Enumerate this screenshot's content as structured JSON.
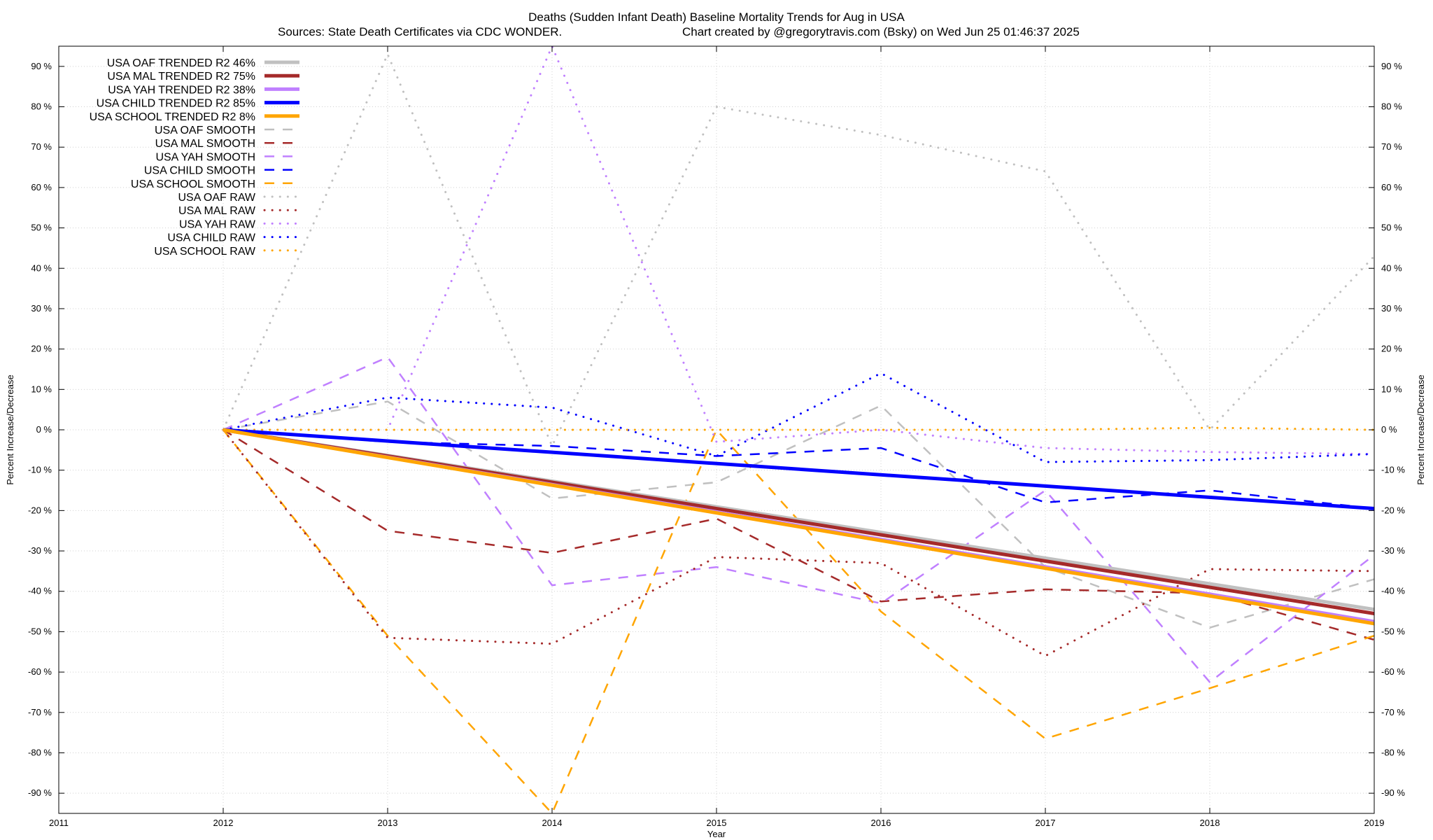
{
  "chart_data": {
    "type": "line",
    "title": "Deaths (Sudden Infant Death)  Baseline Mortality Trends for Aug in USA",
    "subtitle_left": "Sources: State Death Certificates via CDC WONDER.",
    "subtitle_right": "Chart created by @gregorytravis.com (Bsky) on Wed Jun 25 01:46:37 2025",
    "xlabel": "Year",
    "ylabel": "Percent Increase/Decrease",
    "y2label": "Percent Increase/Decrease",
    "xlim": [
      2011,
      2019
    ],
    "ylim": [
      -95,
      95
    ],
    "xticks": [
      "2011",
      "2012",
      "2013",
      "2014",
      "2015",
      "2016",
      "2017",
      "2018",
      "2019"
    ],
    "yticks": [
      "90 %",
      "80 %",
      "70 %",
      "60 %",
      "50 %",
      "40 %",
      "30 %",
      "20 %",
      "10 %",
      "0 %",
      "-10 %",
      "-20 %",
      "-30 %",
      "-40 %",
      "-50 %",
      "-60 %",
      "-70 %",
      "-80 %",
      "-90 %"
    ],
    "grid": true,
    "legend_position": "top-left",
    "series": [
      {
        "name": "USA OAF TRENDED R2  46%",
        "style": "solid",
        "color": "#c0c0c0",
        "x": [
          2012,
          2019
        ],
        "y": [
          0,
          -44.5
        ]
      },
      {
        "name": "USA MAL TRENDED R2  75%",
        "style": "solid",
        "color": "#a52a2a",
        "x": [
          2012,
          2019
        ],
        "y": [
          0,
          -45.5
        ]
      },
      {
        "name": "USA YAH TRENDED R2  38%",
        "style": "solid",
        "color": "#c080ff",
        "x": [
          2012,
          2019
        ],
        "y": [
          0,
          -47.5
        ]
      },
      {
        "name": "USA CHILD TRENDED R2  85%",
        "style": "solid",
        "color": "#0000ff",
        "x": [
          2012,
          2019
        ],
        "y": [
          0,
          -19.5
        ]
      },
      {
        "name": "USA SCHOOL TRENDED R2   8%",
        "style": "solid",
        "color": "#ffa500",
        "x": [
          2012,
          2019
        ],
        "y": [
          0,
          -48
        ]
      },
      {
        "name": "USA OAF SMOOTH",
        "style": "dashed",
        "color": "#c0c0c0",
        "x": [
          2012,
          2013,
          2014,
          2015,
          2016,
          2017,
          2018,
          2019
        ],
        "y": [
          0,
          7,
          -17,
          -13,
          6,
          -34,
          -49,
          -37
        ]
      },
      {
        "name": "USA MAL SMOOTH",
        "style": "dashed",
        "color": "#a52a2a",
        "x": [
          2012,
          2013,
          2014,
          2015,
          2016,
          2017,
          2018,
          2019
        ],
        "y": [
          0,
          -25,
          -30.5,
          -22,
          -42.5,
          -39.5,
          -40.5,
          -52
        ]
      },
      {
        "name": "USA YAH SMOOTH",
        "style": "dashed",
        "color": "#c080ff",
        "x": [
          2012,
          2013,
          2014,
          2015,
          2016,
          2017,
          2018,
          2019
        ],
        "y": [
          0,
          18,
          -38.5,
          -34,
          -43,
          -15,
          -62.5,
          -31
        ]
      },
      {
        "name": "USA CHILD SMOOTH",
        "style": "dashed",
        "color": "#0000ff",
        "x": [
          2012,
          2013,
          2014,
          2015,
          2016,
          2017,
          2018,
          2019
        ],
        "y": [
          0,
          -3,
          -4,
          -6.5,
          -4.5,
          -18,
          -15,
          -19.5
        ]
      },
      {
        "name": "USA SCHOOL SMOOTH",
        "style": "dashed",
        "color": "#ffa500",
        "x": [
          2012,
          2013,
          2014,
          2015,
          2016,
          2017,
          2018,
          2019
        ],
        "y": [
          0,
          -51,
          -95,
          0,
          -45,
          -76.5,
          -64,
          -51
        ]
      },
      {
        "name": "USA OAF RAW",
        "style": "dotted",
        "color": "#c0c0c0",
        "x": [
          2012,
          2013,
          2014,
          2015,
          2016,
          2017,
          2018,
          2019
        ],
        "y": [
          0,
          93,
          -4,
          80,
          73,
          64,
          0,
          43
        ]
      },
      {
        "name": "USA MAL RAW",
        "style": "dotted",
        "color": "#a52a2a",
        "x": [
          2012,
          2013,
          2014,
          2015,
          2016,
          2017,
          2018,
          2019
        ],
        "y": [
          0,
          -51.5,
          -53,
          -31.5,
          -33,
          -56,
          -34.5,
          -35
        ]
      },
      {
        "name": "USA YAH RAW",
        "style": "dotted",
        "color": "#c080ff",
        "x": [
          2012,
          2013,
          2014,
          2015,
          2016,
          2017,
          2018,
          2019
        ],
        "y": [
          0,
          0,
          95,
          -3,
          0,
          -4.5,
          -5.5,
          -6
        ]
      },
      {
        "name": "USA CHILD RAW",
        "style": "dotted",
        "color": "#0000ff",
        "x": [
          2012,
          2013,
          2014,
          2015,
          2016,
          2017,
          2018,
          2019
        ],
        "y": [
          0,
          8,
          5.5,
          -6.5,
          14,
          -8,
          -7.5,
          -6
        ]
      },
      {
        "name": "USA SCHOOL RAW",
        "style": "dotted",
        "color": "#ffa500",
        "x": [
          2012,
          2013,
          2014,
          2015,
          2016,
          2017,
          2018,
          2019
        ],
        "y": [
          0,
          0,
          0,
          0,
          0,
          0,
          0.5,
          0
        ]
      }
    ]
  }
}
